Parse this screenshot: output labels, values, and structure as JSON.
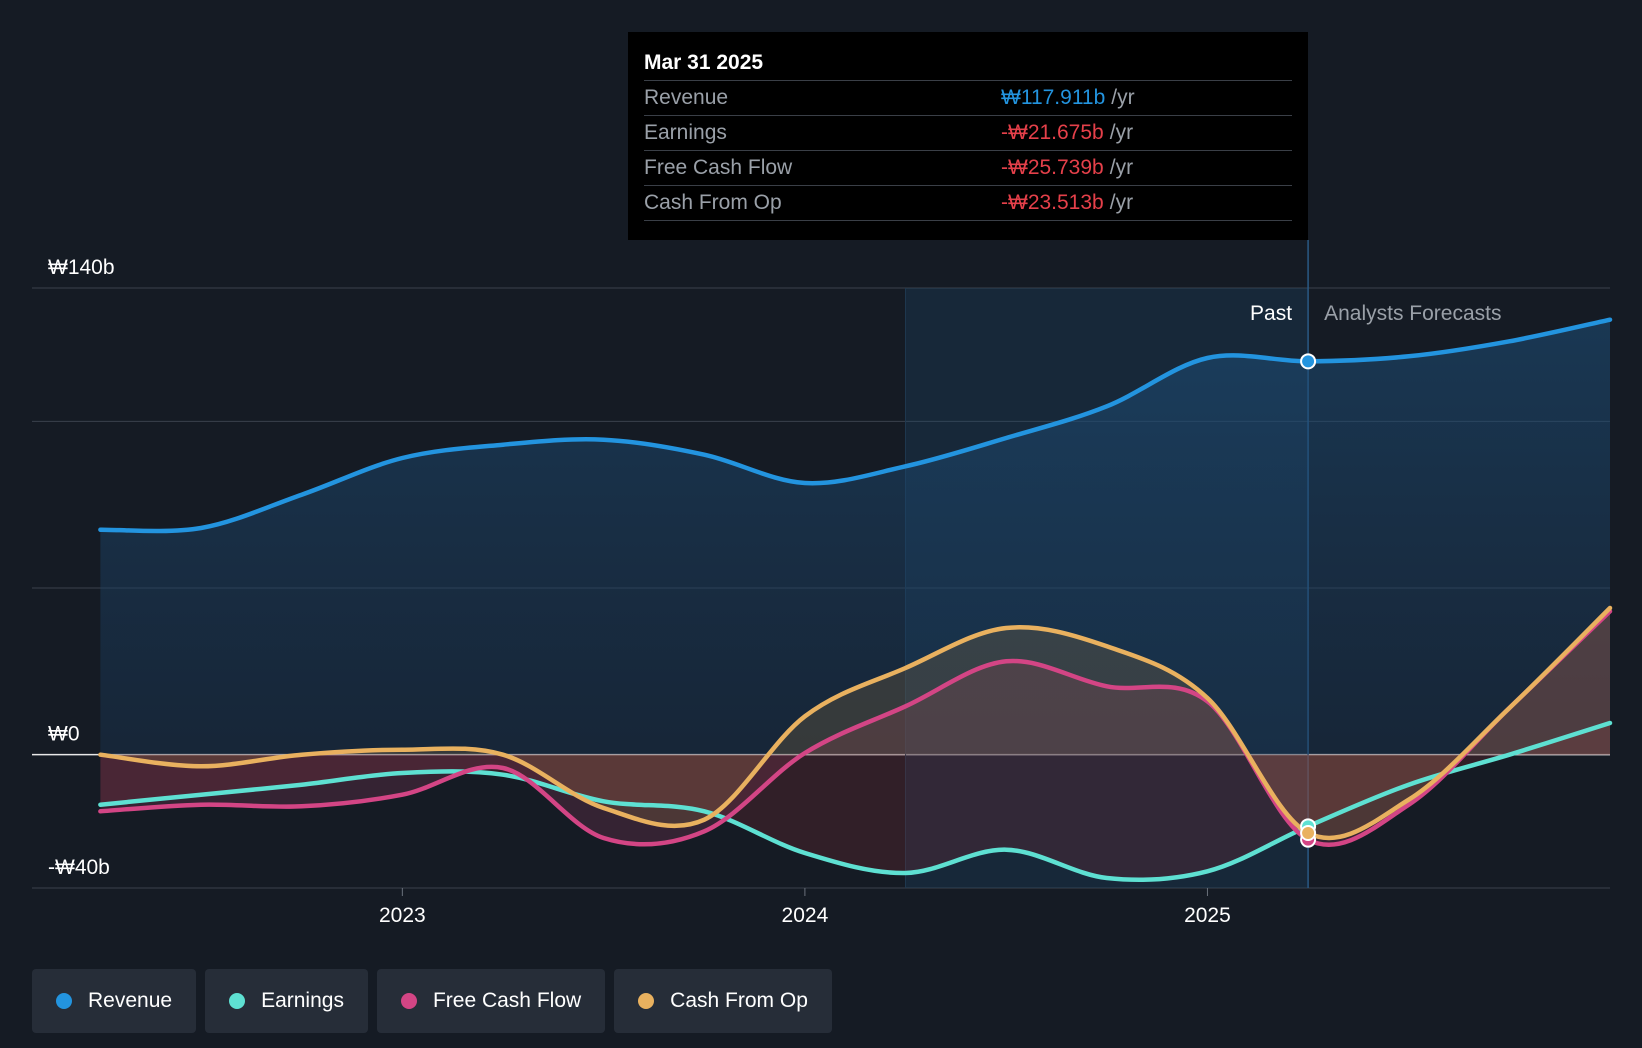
{
  "chart_data": {
    "type": "line",
    "x_ticks": [
      {
        "value": 2023.0,
        "label": "2023"
      },
      {
        "value": 2024.0,
        "label": "2024"
      },
      {
        "value": 2025.0,
        "label": "2025"
      }
    ],
    "xlim": [
      2022.08,
      2026.0
    ],
    "ylim": [
      -40,
      140
    ],
    "y_ticks": [
      {
        "value": 140,
        "label": "₩140b"
      },
      {
        "value": 0,
        "label": "₩0"
      },
      {
        "value": -40,
        "label": "-₩40b"
      }
    ],
    "gridlines": [
      140,
      100,
      50,
      0,
      -40
    ],
    "highlight_range": [
      2024.25,
      2025.25
    ],
    "past_label": "Past",
    "forecast_label": "Analysts Forecasts",
    "series": [
      {
        "name": "Revenue",
        "color": "#2394df",
        "x": [
          2022.25,
          2022.5,
          2022.75,
          2023.0,
          2023.25,
          2023.5,
          2023.75,
          2024.0,
          2024.25,
          2024.5,
          2024.75,
          2025.0,
          2025.25,
          2025.5,
          2025.75,
          2026.0
        ],
        "values": [
          67.5,
          68.0,
          78.0,
          89.0,
          93.0,
          94.5,
          90.0,
          81.5,
          86.5,
          95.0,
          104.5,
          119.0,
          118.0,
          119.5,
          124.0,
          130.5
        ]
      },
      {
        "name": "Earnings",
        "color": "#5ee0d2",
        "x": [
          2022.25,
          2022.5,
          2022.75,
          2023.0,
          2023.25,
          2023.5,
          2023.75,
          2024.0,
          2024.25,
          2024.5,
          2024.75,
          2025.0,
          2025.25,
          2025.5,
          2025.75,
          2026.0
        ],
        "values": [
          -15.0,
          -12.0,
          -9.0,
          -5.5,
          -6.0,
          -14.0,
          -17.0,
          -29.5,
          -35.5,
          -28.5,
          -37.0,
          -35.0,
          -21.5,
          -9.0,
          0.0,
          9.5
        ]
      },
      {
        "name": "Free Cash Flow",
        "color": "#d34585",
        "x": [
          2022.25,
          2022.5,
          2022.75,
          2023.0,
          2023.25,
          2023.5,
          2023.75,
          2024.0,
          2024.25,
          2024.5,
          2024.75,
          2025.0,
          2025.25,
          2025.5,
          2025.75,
          2026.0
        ],
        "values": [
          -17.0,
          -15.0,
          -15.5,
          -12.0,
          -4.0,
          -25.0,
          -23.0,
          0.5,
          14.5,
          28.0,
          20.5,
          16.0,
          -25.5,
          -15.0,
          14.0,
          43.0
        ]
      },
      {
        "name": "Cash From Op",
        "color": "#e9b15f",
        "x": [
          2022.25,
          2022.5,
          2022.75,
          2023.0,
          2023.25,
          2023.5,
          2023.75,
          2024.0,
          2024.25,
          2024.5,
          2024.75,
          2025.0,
          2025.25,
          2025.5,
          2025.75,
          2026.0
        ],
        "values": [
          0.0,
          -3.5,
          0.0,
          1.5,
          0.0,
          -16.0,
          -19.5,
          11.5,
          26.0,
          38.0,
          32.5,
          17.0,
          -23.5,
          -13.5,
          14.0,
          44.0
        ]
      }
    ],
    "marker_x": 2025.25
  },
  "tooltip": {
    "date": "Mar 31 2025",
    "unit": "/yr",
    "rows": [
      {
        "label": "Revenue",
        "value": "₩117.911b",
        "color": "#2394df"
      },
      {
        "label": "Earnings",
        "value": "-₩21.675b",
        "color": "#e5404a"
      },
      {
        "label": "Free Cash Flow",
        "value": "-₩25.739b",
        "color": "#e5404a"
      },
      {
        "label": "Cash From Op",
        "value": "-₩23.513b",
        "color": "#e5404a"
      }
    ]
  },
  "legend": [
    {
      "label": "Revenue",
      "color": "#2394df"
    },
    {
      "label": "Earnings",
      "color": "#5ee0d2"
    },
    {
      "label": "Free Cash Flow",
      "color": "#d34585"
    },
    {
      "label": "Cash From Op",
      "color": "#e9b15f"
    }
  ]
}
